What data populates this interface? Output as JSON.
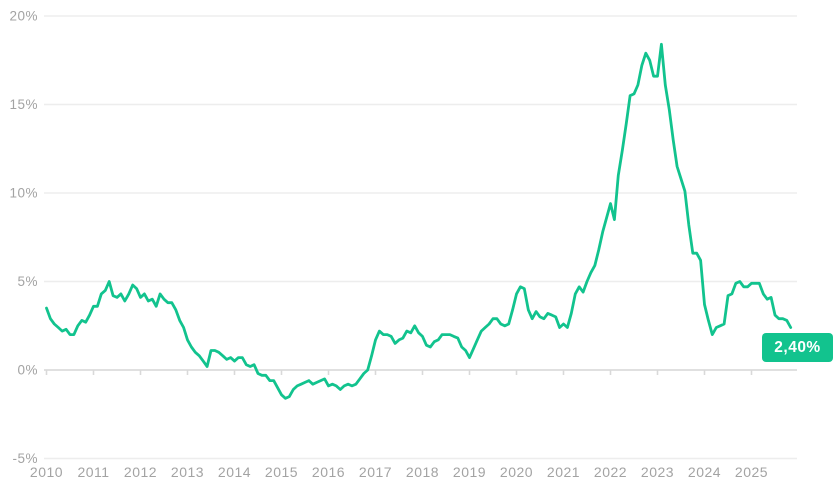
{
  "chart_data": {
    "type": "line",
    "x_monthly_start": "2010-01",
    "x_monthly_end": "2025-11",
    "series": [
      {
        "name": "inflation-rate-yoy-percent",
        "color": "#12c38e",
        "values": [
          3.5,
          2.9,
          2.6,
          2.4,
          2.2,
          2.3,
          2.0,
          2.0,
          2.5,
          2.8,
          2.7,
          3.1,
          3.6,
          3.6,
          4.3,
          4.5,
          5.0,
          4.2,
          4.1,
          4.3,
          3.9,
          4.3,
          4.8,
          4.6,
          4.1,
          4.3,
          3.9,
          4.0,
          3.6,
          4.3,
          4.0,
          3.8,
          3.8,
          3.4,
          2.8,
          2.4,
          1.7,
          1.3,
          1.0,
          0.8,
          0.5,
          0.2,
          1.1,
          1.1,
          1.0,
          0.8,
          0.6,
          0.7,
          0.5,
          0.7,
          0.7,
          0.3,
          0.2,
          0.3,
          -0.2,
          -0.3,
          -0.3,
          -0.6,
          -0.6,
          -1.0,
          -1.4,
          -1.6,
          -1.5,
          -1.1,
          -0.9,
          -0.8,
          -0.7,
          -0.6,
          -0.8,
          -0.7,
          -0.6,
          -0.5,
          -0.9,
          -0.8,
          -0.9,
          -1.1,
          -0.9,
          -0.8,
          -0.9,
          -0.8,
          -0.5,
          -0.2,
          0.0,
          0.8,
          1.7,
          2.2,
          2.0,
          2.0,
          1.9,
          1.5,
          1.7,
          1.8,
          2.2,
          2.1,
          2.5,
          2.1,
          1.9,
          1.4,
          1.3,
          1.6,
          1.7,
          2.0,
          2.0,
          2.0,
          1.9,
          1.8,
          1.3,
          1.1,
          0.7,
          1.2,
          1.7,
          2.2,
          2.4,
          2.6,
          2.9,
          2.9,
          2.6,
          2.5,
          2.6,
          3.4,
          4.3,
          4.7,
          4.6,
          3.4,
          2.9,
          3.3,
          3.0,
          2.9,
          3.2,
          3.1,
          3.0,
          2.4,
          2.6,
          2.4,
          3.2,
          4.3,
          4.7,
          4.4,
          5.0,
          5.5,
          5.9,
          6.8,
          7.8,
          8.6,
          9.4,
          8.5,
          11.0,
          12.4,
          13.9,
          15.5,
          15.6,
          16.1,
          17.2,
          17.9,
          17.5,
          16.6,
          16.6,
          18.4,
          16.1,
          14.7,
          13.0,
          11.5,
          10.8,
          10.1,
          8.2,
          6.6,
          6.6,
          6.2,
          3.7,
          2.8,
          2.0,
          2.4,
          2.5,
          2.6,
          4.2,
          4.3,
          4.9,
          5.0,
          4.7,
          4.7,
          4.9,
          4.9,
          4.9,
          4.3,
          4.0,
          4.1,
          3.1,
          2.9,
          2.9,
          2.8,
          2.4
        ]
      }
    ],
    "x_tick_labels": [
      "2010",
      "2011",
      "2012",
      "2013",
      "2014",
      "2015",
      "2016",
      "2017",
      "2018",
      "2019",
      "2020",
      "2021",
      "2022",
      "2023",
      "2024",
      "2025"
    ],
    "y_axis": {
      "ticks": [
        20,
        15,
        10,
        5,
        0,
        -5
      ],
      "labels": [
        "20%",
        "15%",
        "10%",
        "5%",
        "0%",
        "-5%"
      ],
      "range": [
        -5,
        20
      ]
    },
    "grid": "horizontal",
    "legend": "none",
    "end_label": "2,40%"
  },
  "colors": {
    "line": "#12c38e",
    "badge_bg": "#12c38e",
    "badge_text": "#ffffff",
    "grid_line": "#ededed",
    "axis_line": "#e0e0e0",
    "tick_mark": "#d9d9d9",
    "axis_label": "#a3a3a3",
    "background": "#ffffff"
  }
}
